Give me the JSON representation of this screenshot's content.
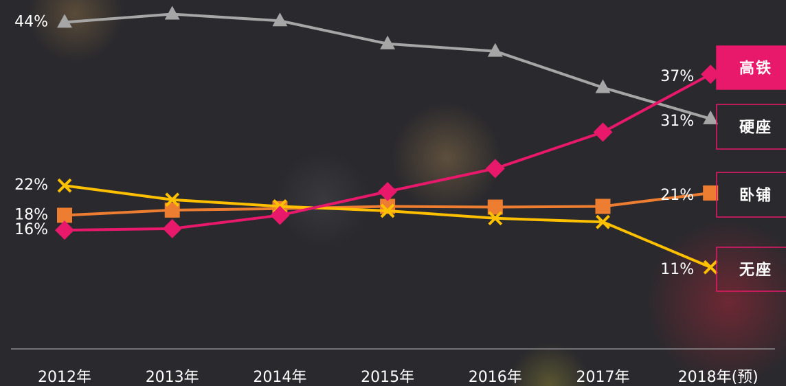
{
  "chart_data": {
    "type": "line",
    "categories": [
      "2012年",
      "2013年",
      "2014年",
      "2015年",
      "2016年",
      "2017年",
      "2018年(预)"
    ],
    "ylim": [
      0,
      47
    ],
    "series": [
      {
        "name": "高铁",
        "color": "#e8186b",
        "marker": "diamond",
        "values": [
          16,
          16.2,
          18,
          21.2,
          24.3,
          29.2,
          37
        ],
        "value_labels": [
          "16%",
          null,
          null,
          null,
          null,
          null,
          "37%"
        ]
      },
      {
        "name": "硬座",
        "color": "#a6a6a6",
        "marker": "triangle",
        "values": [
          44,
          45.1,
          44.2,
          41.1,
          40.1,
          35.2,
          31
        ],
        "value_labels": [
          "44%",
          null,
          null,
          null,
          null,
          null,
          "31%"
        ]
      },
      {
        "name": "卧铺",
        "color": "#ed7d31",
        "marker": "square",
        "values": [
          18,
          18.7,
          18.9,
          19.2,
          19.1,
          19.2,
          21
        ],
        "value_labels": [
          "18%",
          null,
          null,
          null,
          null,
          null,
          "21%"
        ]
      },
      {
        "name": "无座",
        "color": "#ffc000",
        "marker": "x",
        "values": [
          22,
          20.1,
          19.2,
          18.6,
          17.6,
          17.1,
          11
        ],
        "value_labels": [
          "22%",
          null,
          null,
          null,
          null,
          null,
          "11%"
        ]
      }
    ]
  }
}
